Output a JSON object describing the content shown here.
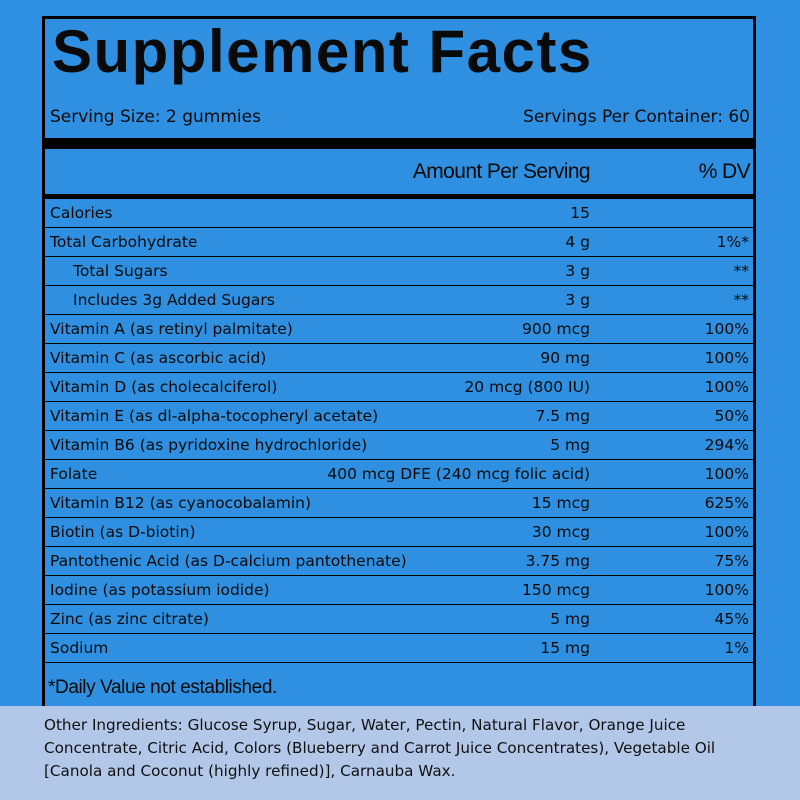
{
  "label": {
    "title": "Supplement Facts",
    "serving_size": "Serving Size: 2 gummies",
    "servings_per_container": "Servings Per Container: 60",
    "header_amount": "Amount Per Serving",
    "header_dv": "% DV",
    "rows": [
      {
        "name": "Calories",
        "amount": "15",
        "dv": ""
      },
      {
        "name": "Total Carbohydrate",
        "amount": "4 g",
        "dv": "1%*"
      },
      {
        "name": "Total Sugars",
        "amount": "3 g",
        "dv": "**"
      },
      {
        "name": "Includes 3g Added Sugars",
        "amount": "3 g",
        "dv": "**"
      },
      {
        "name": "Vitamin A (as retinyl palmitate)",
        "amount": "900 mcg",
        "dv": "100%"
      },
      {
        "name": "Vitamin C (as ascorbic acid)",
        "amount": "90 mg",
        "dv": "100%"
      },
      {
        "name": "Vitamin D (as cholecalciferol)",
        "amount": "20 mcg (800 IU)",
        "dv": "100%"
      },
      {
        "name": "Vitamin E (as dl-alpha-tocopheryl acetate)",
        "amount": "7.5 mg",
        "dv": "50%"
      },
      {
        "name": "Vitamin B6 (as pyridoxine hydrochloride)",
        "amount": "5 mg",
        "dv": "294%"
      },
      {
        "name": "Folate",
        "amount": "400 mcg DFE (240 mcg folic acid)",
        "dv": "100%"
      },
      {
        "name": "Vitamin B12 (as cyanocobalamin)",
        "amount": "15 mcg",
        "dv": "625%"
      },
      {
        "name": "Biotin (as D-biotin)",
        "amount": "30 mcg",
        "dv": "100%"
      },
      {
        "name": "Pantothenic Acid (as D-calcium pantothenate)",
        "amount": "3.75 mg",
        "dv": "75%"
      },
      {
        "name": "Iodine (as potassium iodide)",
        "amount": "150 mcg",
        "dv": "100%"
      },
      {
        "name": "Zinc (as zinc citrate)",
        "amount": "5 mg",
        "dv": "45%"
      },
      {
        "name": "Sodium",
        "amount": "15 mg",
        "dv": "1%"
      }
    ],
    "footnote": "*Daily Value not established."
  },
  "other_ingredients": "Other Ingredients: Glucose Syrup, Sugar, Water, Pectin, Natural Flavor, Orange Juice Concentrate, Citric Acid, Colors (Blueberry and Carrot Juice Concentrates), Vegetable Oil [Canola and Coconut (highly refined)], Carnauba Wax.",
  "colors": {
    "panel_blue": "#2f8fe0",
    "bottom_band": "#b3c7e8",
    "rule": "#000000"
  }
}
